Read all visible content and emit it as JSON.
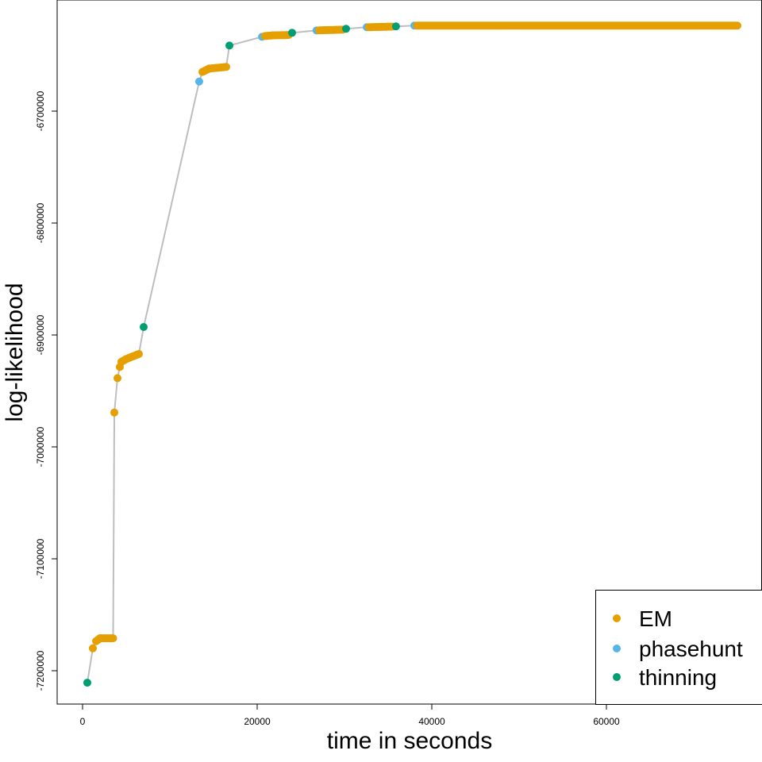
{
  "chart_data": {
    "type": "scatter",
    "title": "",
    "xlabel": "time in seconds",
    "ylabel": "log-likelihood",
    "xlim": [
      -3000,
      78000
    ],
    "ylim": [
      -7230000,
      -6600000
    ],
    "xticks": [
      0,
      20000,
      40000,
      60000
    ],
    "xtick_labels": [
      "0",
      "20000",
      "40000",
      "60000"
    ],
    "yticks": [
      -6700000,
      -6800000,
      -6900000,
      -7000000,
      -7100000,
      -7200000
    ],
    "ytick_labels": [
      "-6700000",
      "-6800000",
      "-6900000",
      "-7000000",
      "-7100000",
      "-7200000"
    ],
    "grid": false,
    "legend_position": "bottom-right",
    "line_color": "#BEBEBE",
    "series": [
      {
        "name": "EM",
        "color": "#E69F00",
        "runs": [
          [
            [
              1180,
              -7180000
            ]
          ],
          [
            [
              1550,
              -7173600
            ],
            [
              2000,
              -7171000
            ],
            [
              3500,
              -7171000
            ]
          ],
          [
            [
              3640,
              -6969300
            ]
          ],
          [
            [
              4000,
              -6938600
            ]
          ],
          [
            [
              4270,
              -6928600
            ]
          ],
          [
            [
              4450,
              -6924000
            ],
            [
              5000,
              -6921500
            ],
            [
              6450,
              -6917000
            ]
          ],
          [
            [
              13730,
              -6665000
            ],
            [
              14500,
              -6662000
            ],
            [
              16450,
              -6660500
            ]
          ],
          [
            [
              20900,
              -6632900
            ],
            [
              21800,
              -6632300
            ],
            [
              23600,
              -6632000
            ]
          ],
          [
            [
              27100,
              -6627800
            ],
            [
              29800,
              -6627200
            ]
          ],
          [
            [
              32800,
              -6625000
            ],
            [
              35500,
              -6624500
            ]
          ],
          [
            [
              38300,
              -6623600
            ],
            [
              75000,
              -6623600
            ]
          ]
        ]
      },
      {
        "name": "phasehunt",
        "color": "#56B4E9",
        "points": [
          [
            13360,
            -6673600
          ],
          [
            20550,
            -6633600
          ],
          [
            26800,
            -6627900
          ],
          [
            32550,
            -6625000
          ],
          [
            38000,
            -6623600
          ]
        ]
      },
      {
        "name": "thinning",
        "color": "#009E73",
        "points": [
          [
            545,
            -7210700
          ],
          [
            7000,
            -6892900
          ],
          [
            16820,
            -6641400
          ],
          [
            24000,
            -6630000
          ],
          [
            30180,
            -6626400
          ],
          [
            35900,
            -6624300
          ]
        ]
      }
    ]
  }
}
